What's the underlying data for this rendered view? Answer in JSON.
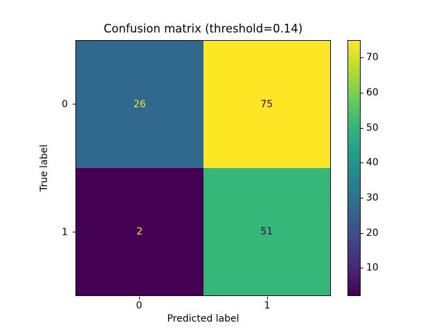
{
  "chart_data": {
    "type": "heatmap",
    "title": "Confusion matrix (threshold=0.14)",
    "xlabel": "Predicted label",
    "ylabel": "True label",
    "x_tick_labels": [
      "0",
      "1"
    ],
    "y_tick_labels": [
      "0",
      "1"
    ],
    "matrix": [
      [
        26,
        75
      ],
      [
        2,
        51
      ]
    ],
    "vmin": 2,
    "vmax": 75,
    "colormap": "viridis",
    "grid": false,
    "colorbar": {
      "position": "right",
      "ticks": [
        "70",
        "60",
        "50",
        "40",
        "30",
        "20",
        "10"
      ]
    }
  },
  "colors": {
    "background": "#ffffff",
    "axis": "#000000",
    "cell_00": "#31688e",
    "cell_01": "#fde725",
    "cell_10": "#440154",
    "cell_11": "#35b779",
    "text_on_dark_cell": "#fde725",
    "text_on_light_cell": "#440154",
    "viridis_gradient": "linear-gradient(to top, #440154, #482878, #3e4989, #31688e, #26828e, #1f9e89, #35b779, #6ece58, #b5de2b, #fde725)"
  }
}
